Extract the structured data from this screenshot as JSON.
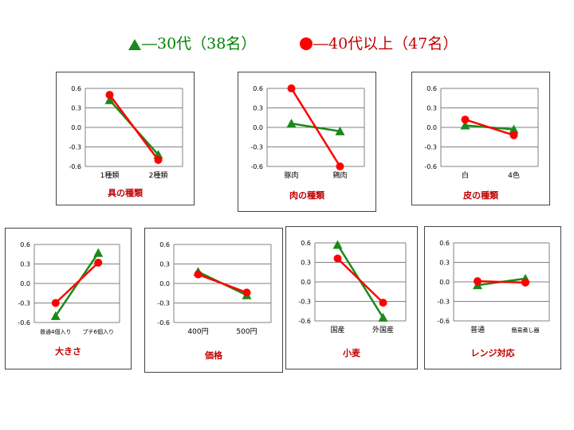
{
  "legend": {
    "series1": "―30代（38名）",
    "series2": "―40代以上（47名）"
  },
  "colors": {
    "series1": "#1a8a1a",
    "series2": "#ff0000",
    "title": "#c00000"
  },
  "chart_data": [
    {
      "type": "line",
      "title": "具の種類",
      "categories": [
        "1種類",
        "2種類"
      ],
      "ylim": [
        -0.6,
        0.6
      ],
      "yticks": [
        "0.6",
        "0.3",
        "0.0",
        "-0.3",
        "-0.6"
      ],
      "grid": true,
      "series": [
        {
          "name": "30代（38名）",
          "values": [
            0.42,
            -0.42
          ]
        },
        {
          "name": "40代以上（47名）",
          "values": [
            0.5,
            -0.5
          ]
        }
      ]
    },
    {
      "type": "line",
      "title": "肉の種類",
      "categories": [
        "豚肉",
        "鶏肉"
      ],
      "ylim": [
        -0.6,
        0.6
      ],
      "yticks": [
        "0.6",
        "0.3",
        "0.0",
        "-0.3",
        "-0.6"
      ],
      "grid": true,
      "series": [
        {
          "name": "30代（38名）",
          "values": [
            0.06,
            -0.06
          ]
        },
        {
          "name": "40代以上（47名）",
          "values": [
            0.6,
            -0.6
          ]
        }
      ]
    },
    {
      "type": "line",
      "title": "皮の種類",
      "categories": [
        "白",
        "4色"
      ],
      "ylim": [
        -0.6,
        0.6
      ],
      "yticks": [
        "0.6",
        "0.3",
        "0.0",
        "-0.3",
        "-0.6"
      ],
      "grid": true,
      "series": [
        {
          "name": "30代（38名）",
          "values": [
            0.03,
            -0.03
          ]
        },
        {
          "name": "40代以上（47名）",
          "values": [
            0.12,
            -0.12
          ]
        }
      ]
    },
    {
      "type": "line",
      "title": "大きさ",
      "categories": [
        "普通4個入り",
        "プチ6個入り"
      ],
      "ylim": [
        -0.6,
        0.6
      ],
      "yticks": [
        "0.6",
        "0.3",
        "0.0",
        "-0.3",
        "-0.6"
      ],
      "grid": true,
      "series": [
        {
          "name": "30代（38名）",
          "values": [
            -0.5,
            0.47
          ]
        },
        {
          "name": "40代以上（47名）",
          "values": [
            -0.3,
            0.32
          ]
        }
      ]
    },
    {
      "type": "line",
      "title": "価格",
      "categories": [
        "400円",
        "500円"
      ],
      "ylim": [
        -0.6,
        0.6
      ],
      "yticks": [
        "0.6",
        "0.3",
        "0.0",
        "-0.3",
        "-0.6"
      ],
      "grid": true,
      "series": [
        {
          "name": "30代（38名）",
          "values": [
            0.18,
            -0.18
          ]
        },
        {
          "name": "40代以上（47名）",
          "values": [
            0.14,
            -0.14
          ]
        }
      ]
    },
    {
      "type": "line",
      "title": "小麦",
      "categories": [
        "国産",
        "外国産"
      ],
      "ylim": [
        -0.6,
        0.6
      ],
      "yticks": [
        "0.6",
        "0.3",
        "0.0",
        "-0.3",
        "-0.6"
      ],
      "grid": true,
      "series": [
        {
          "name": "30代（38名）",
          "values": [
            0.57,
            -0.55
          ]
        },
        {
          "name": "40代以上（47名）",
          "values": [
            0.36,
            -0.32
          ]
        }
      ]
    },
    {
      "type": "line",
      "title": "レンジ対応",
      "categories": [
        "普通",
        "簡易煮し器"
      ],
      "ylim": [
        -0.6,
        0.6
      ],
      "yticks": [
        "0.6",
        "0.3",
        "0.0",
        "-0.3",
        "-0.6"
      ],
      "grid": true,
      "series": [
        {
          "name": "30代（38名）",
          "values": [
            -0.05,
            0.05
          ]
        },
        {
          "name": "40代以上（47名）",
          "values": [
            0.01,
            -0.01
          ]
        }
      ]
    }
  ]
}
